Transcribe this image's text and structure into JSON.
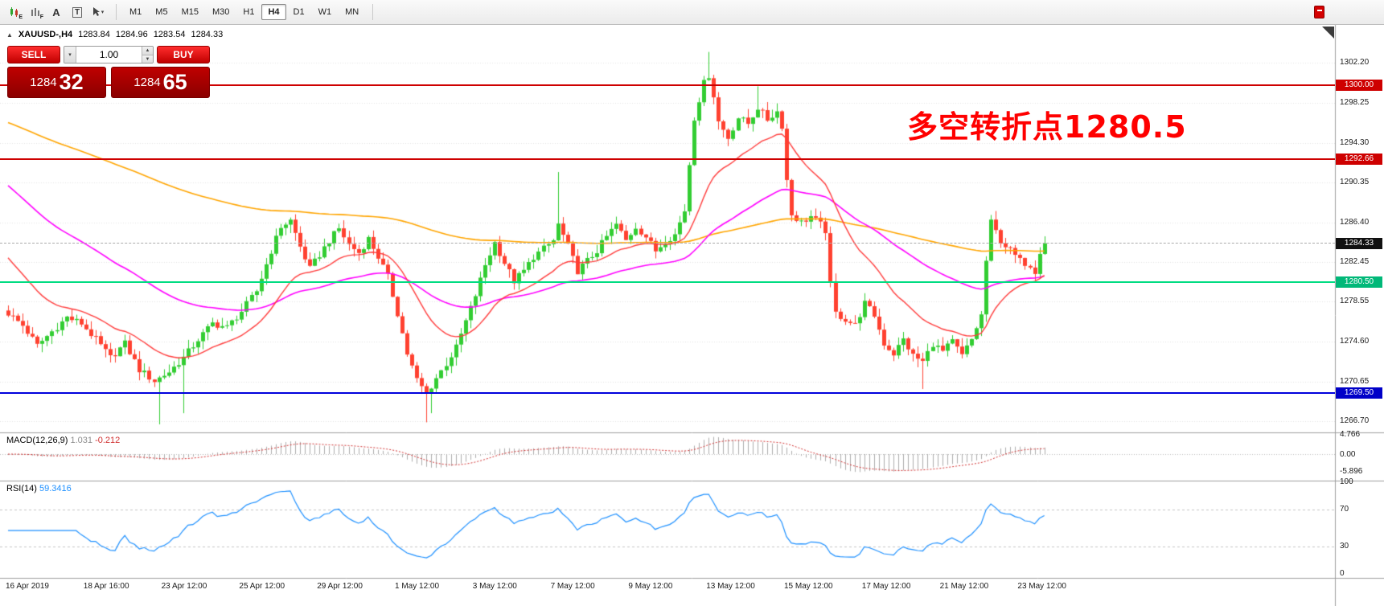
{
  "toolbar": {
    "tool_icons": [
      {
        "badge": "E"
      },
      {
        "badge": "F"
      },
      {
        "label": "A"
      },
      {
        "label": "T"
      },
      {
        "label": "▾"
      }
    ],
    "timeframes": [
      "M1",
      "M5",
      "M15",
      "M30",
      "H1",
      "H4",
      "D1",
      "W1",
      "MN"
    ],
    "active_timeframe": "H4"
  },
  "header": {
    "symbol": "XAUUSD-,H4",
    "open": "1283.84",
    "high": "1284.96",
    "low": "1283.54",
    "close": "1284.33"
  },
  "trade_panel": {
    "sell_label": "SELL",
    "buy_label": "BUY",
    "lot_value": "1.00",
    "bid_big": "1284",
    "bid_pips": "32",
    "ask_big": "1284",
    "ask_pips": "65"
  },
  "annotation": {
    "text": "多空转折点1280.5",
    "color": "#ff0000"
  },
  "price_scale": {
    "labels": [
      "1302.20",
      "1298.25",
      "1294.30",
      "1290.35",
      "1286.40",
      "1282.45",
      "1278.55",
      "1274.60",
      "1270.65",
      "1266.70"
    ],
    "tags": [
      {
        "text": "1300.00",
        "bg": "#ce0000"
      },
      {
        "text": "1292.66",
        "bg": "#ce0000"
      },
      {
        "text": "1284.33",
        "bg": "#111111"
      },
      {
        "text": "1280.50",
        "bg": "#00b878"
      },
      {
        "text": "1269.50",
        "bg": "#0000c8"
      }
    ]
  },
  "hlines": [
    {
      "price": 1300.0,
      "color": "#ce0000",
      "w": 2,
      "dash": false
    },
    {
      "price": 1292.66,
      "color": "#ce0000",
      "w": 2,
      "dash": false
    },
    {
      "price": 1280.5,
      "color": "#00dc82",
      "w": 2,
      "dash": false
    },
    {
      "price": 1269.5,
      "color": "#0000dc",
      "w": 2,
      "dash": false
    },
    {
      "price": 1284.33,
      "color": "#ababab",
      "w": 1,
      "dash": true
    }
  ],
  "time_axis": {
    "step": 16,
    "labels": [
      "16 Apr 2019",
      "18 Apr 16:00",
      "23 Apr 12:00",
      "25 Apr 12:00",
      "29 Apr 12:00",
      "1 May 12:00",
      "3 May 12:00",
      "7 May 12:00",
      "9 May 12:00",
      "13 May 12:00",
      "15 May 12:00",
      "17 May 12:00",
      "21 May 12:00",
      "23 May 12:00"
    ]
  },
  "macd": {
    "label": "MACD(12,26,9)",
    "main_value": "1.031",
    "signal_value": "-0.212",
    "range": [
      -5.896,
      4.766
    ],
    "scale": [
      [
        "4.766",
        4.766
      ],
      [
        "0.00",
        0
      ],
      [
        "-5.896",
        -5.896
      ]
    ]
  },
  "rsi": {
    "label": "RSI(14)",
    "value": "59.3416",
    "levels": [
      70,
      30
    ],
    "scale": [
      [
        "100",
        100
      ],
      [
        "70",
        70
      ],
      [
        "30",
        30
      ],
      [
        "0",
        0
      ]
    ]
  },
  "chart_data": {
    "type": "candlestick",
    "symbol": "XAUUSD",
    "timeframe": "H4",
    "candle_count": 214,
    "last_close": 1284.33,
    "price_range": [
      1265.6,
      1305.9
    ],
    "anchors": [
      [
        0,
        1277.4
      ],
      [
        3,
        1276.2
      ],
      [
        6,
        1274.2
      ],
      [
        9,
        1275.6
      ],
      [
        12,
        1277.0
      ],
      [
        15,
        1276.4
      ],
      [
        18,
        1274.8
      ],
      [
        21,
        1273.0
      ],
      [
        24,
        1274.4
      ],
      [
        27,
        1271.8
      ],
      [
        30,
        1270.7
      ],
      [
        33,
        1271.6
      ],
      [
        36,
        1273.0
      ],
      [
        39,
        1274.8
      ],
      [
        42,
        1276.4
      ],
      [
        45,
        1276.0
      ],
      [
        48,
        1277.6
      ],
      [
        51,
        1279.6
      ],
      [
        54,
        1283.6
      ],
      [
        56,
        1286.0
      ],
      [
        58,
        1286.6
      ],
      [
        60,
        1284.0
      ],
      [
        62,
        1281.8
      ],
      [
        64,
        1283.2
      ],
      [
        66,
        1284.6
      ],
      [
        68,
        1285.8
      ],
      [
        70,
        1284.2
      ],
      [
        72,
        1283.4
      ],
      [
        74,
        1284.8
      ],
      [
        76,
        1283.0
      ],
      [
        78,
        1281.0
      ],
      [
        80,
        1277.4
      ],
      [
        82,
        1273.4
      ],
      [
        84,
        1270.8
      ],
      [
        86,
        1269.4
      ],
      [
        88,
        1271.0
      ],
      [
        90,
        1272.4
      ],
      [
        92,
        1274.0
      ],
      [
        94,
        1276.6
      ],
      [
        96,
        1279.2
      ],
      [
        98,
        1282.2
      ],
      [
        100,
        1284.4
      ],
      [
        102,
        1282.4
      ],
      [
        104,
        1280.6
      ],
      [
        106,
        1281.6
      ],
      [
        108,
        1283.0
      ],
      [
        110,
        1283.8
      ],
      [
        112,
        1284.6
      ],
      [
        113,
        1286.2
      ],
      [
        115,
        1284.0
      ],
      [
        117,
        1281.6
      ],
      [
        119,
        1282.6
      ],
      [
        121,
        1283.6
      ],
      [
        123,
        1285.0
      ],
      [
        125,
        1286.2
      ],
      [
        127,
        1284.6
      ],
      [
        129,
        1286.0
      ],
      [
        131,
        1285.0
      ],
      [
        133,
        1283.6
      ],
      [
        135,
        1284.6
      ],
      [
        137,
        1285.2
      ],
      [
        139,
        1287.6
      ],
      [
        140,
        1292.2
      ],
      [
        141,
        1296.8
      ],
      [
        142,
        1298.6
      ],
      [
        143,
        1300.2
      ],
      [
        144,
        1301.0
      ],
      [
        145,
        1299.0
      ],
      [
        146,
        1296.4
      ],
      [
        148,
        1294.8
      ],
      [
        150,
        1296.8
      ],
      [
        152,
        1296.2
      ],
      [
        154,
        1297.8
      ],
      [
        156,
        1296.6
      ],
      [
        158,
        1297.4
      ],
      [
        159,
        1296.0
      ],
      [
        160,
        1290.6
      ],
      [
        161,
        1287.2
      ],
      [
        163,
        1286.4
      ],
      [
        165,
        1287.0
      ],
      [
        167,
        1286.2
      ],
      [
        168,
        1285.6
      ],
      [
        169,
        1280.2
      ],
      [
        170,
        1277.4
      ],
      [
        172,
        1276.8
      ],
      [
        174,
        1276.2
      ],
      [
        176,
        1278.4
      ],
      [
        178,
        1277.2
      ],
      [
        180,
        1274.4
      ],
      [
        182,
        1273.4
      ],
      [
        184,
        1274.8
      ],
      [
        186,
        1273.2
      ],
      [
        188,
        1272.6
      ],
      [
        190,
        1274.4
      ],
      [
        192,
        1273.6
      ],
      [
        194,
        1274.6
      ],
      [
        196,
        1273.2
      ],
      [
        198,
        1274.8
      ],
      [
        200,
        1277.2
      ],
      [
        201,
        1282.6
      ],
      [
        202,
        1286.4
      ],
      [
        204,
        1284.6
      ],
      [
        206,
        1283.6
      ],
      [
        208,
        1282.6
      ],
      [
        210,
        1282.2
      ],
      [
        211,
        1281.6
      ],
      [
        212,
        1283.6
      ],
      [
        213,
        1284.33
      ]
    ],
    "spikes": [
      {
        "i": 31,
        "low": 1266.4
      },
      {
        "i": 36,
        "low": 1267.5
      },
      {
        "i": 86,
        "low": 1266.6
      },
      {
        "i": 87,
        "low": 1267.5
      },
      {
        "i": 113,
        "high": 1291.4
      },
      {
        "i": 144,
        "high": 1303.3
      },
      {
        "i": 154,
        "high": 1299.9
      },
      {
        "i": 188,
        "low": 1269.9
      },
      {
        "i": 211,
        "low": 1280.6
      }
    ],
    "colors": {
      "up": "#32cd32",
      "down": "#ff4130",
      "ma_red": "#ff3c3c",
      "ma_magenta": "#ff00ff",
      "ma_orange": "#ffa500",
      "macd_hist": "#adadad",
      "macd_signal": "#d03030",
      "rsi_line": "#1e90ff",
      "grid": "#e3e3e3"
    }
  }
}
